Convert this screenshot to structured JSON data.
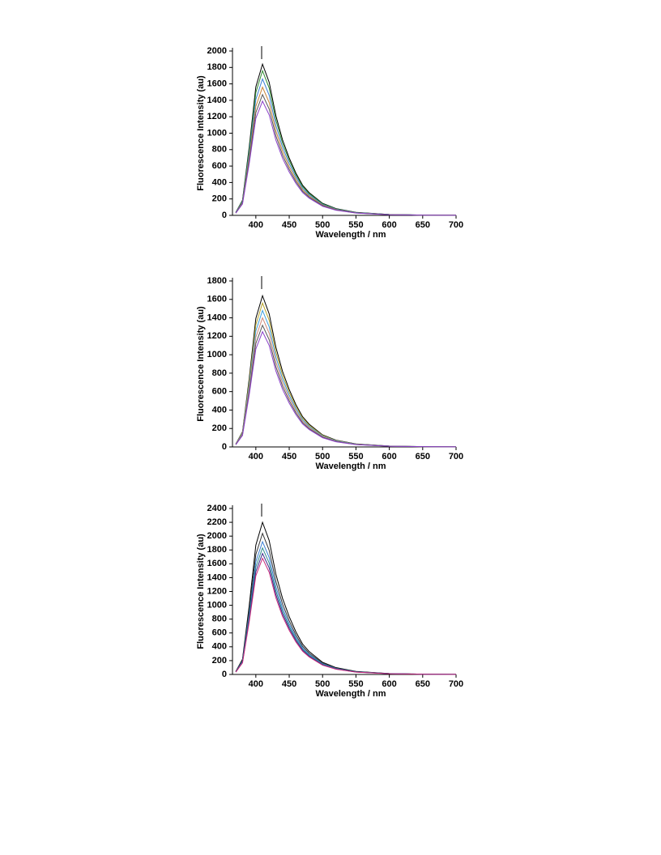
{
  "chart_data": [
    {
      "type": "line",
      "x_label": "Wavelength / nm",
      "y_label": "Fluorescence Intensity (au)",
      "x": [
        370,
        380,
        390,
        400,
        410,
        420,
        430,
        440,
        450,
        460,
        470,
        480,
        500,
        520,
        550,
        600,
        650,
        700
      ],
      "xlim": [
        365,
        700
      ],
      "xticks": [
        400,
        450,
        500,
        550,
        600,
        650,
        700
      ],
      "ylim": [
        0,
        2000
      ],
      "yticks": [
        0,
        200,
        400,
        600,
        800,
        1000,
        1200,
        1400,
        1600,
        1800,
        2000
      ],
      "series": [
        {
          "color": "#000000",
          "values": [
            37,
            184,
            828,
            1564,
            1840,
            1619,
            1214,
            920,
            699,
            515,
            368,
            276,
            147,
            83,
            37,
            11,
            4,
            2
          ]
        },
        {
          "color": "#2e8b2e",
          "values": [
            35,
            176,
            792,
            1496,
            1760,
            1549,
            1162,
            880,
            669,
            493,
            352,
            264,
            141,
            79,
            35,
            11,
            4,
            2
          ]
        },
        {
          "color": "#3a7fd5",
          "values": [
            33,
            166,
            747,
            1411,
            1660,
            1461,
            1096,
            830,
            631,
            465,
            332,
            249,
            133,
            75,
            33,
            10,
            3,
            2
          ]
        },
        {
          "color": "#c9853a",
          "values": [
            31,
            156,
            702,
            1326,
            1560,
            1373,
            1030,
            780,
            593,
            437,
            312,
            234,
            125,
            70,
            31,
            9,
            3,
            2
          ]
        },
        {
          "color": "#555555",
          "values": [
            29,
            147,
            662,
            1250,
            1470,
            1294,
            970,
            735,
            559,
            412,
            294,
            221,
            118,
            66,
            29,
            9,
            3,
            1
          ]
        },
        {
          "color": "#8a3fc8",
          "values": [
            28,
            139,
            626,
            1182,
            1390,
            1223,
            917,
            695,
            528,
            389,
            278,
            209,
            111,
            63,
            28,
            8,
            3,
            1
          ]
        }
      ]
    },
    {
      "type": "line",
      "x_label": "Wavelength / nm",
      "y_label": "Fluorescence Intensity (au)",
      "x": [
        370,
        380,
        390,
        400,
        410,
        420,
        430,
        440,
        450,
        460,
        470,
        480,
        500,
        520,
        550,
        600,
        650,
        700
      ],
      "xlim": [
        365,
        700
      ],
      "xticks": [
        400,
        450,
        500,
        550,
        600,
        650,
        700
      ],
      "ylim": [
        0,
        1800
      ],
      "yticks": [
        0,
        200,
        400,
        600,
        800,
        1000,
        1200,
        1400,
        1600,
        1800
      ],
      "series": [
        {
          "color": "#000000",
          "values": [
            33,
            164,
            738,
            1394,
            1640,
            1443,
            1082,
            820,
            623,
            459,
            328,
            246,
            131,
            74,
            33,
            10,
            3,
            2
          ]
        },
        {
          "color": "#b8a32a",
          "values": [
            31,
            156,
            702,
            1326,
            1560,
            1373,
            1030,
            780,
            593,
            437,
            312,
            234,
            125,
            70,
            31,
            9,
            3,
            2
          ]
        },
        {
          "color": "#3a9fe0",
          "values": [
            30,
            148,
            666,
            1258,
            1480,
            1302,
            977,
            740,
            562,
            414,
            296,
            222,
            118,
            67,
            30,
            9,
            3,
            1
          ]
        },
        {
          "color": "#d08a7a",
          "values": [
            28,
            140,
            630,
            1190,
            1400,
            1232,
            924,
            700,
            532,
            392,
            280,
            210,
            112,
            63,
            28,
            8,
            3,
            1
          ]
        },
        {
          "color": "#555555",
          "values": [
            26,
            132,
            594,
            1122,
            1320,
            1162,
            871,
            660,
            502,
            370,
            264,
            198,
            106,
            59,
            26,
            8,
            3,
            1
          ]
        },
        {
          "color": "#8a3fc8",
          "values": [
            25,
            125,
            563,
            1063,
            1250,
            1100,
            825,
            625,
            475,
            350,
            250,
            188,
            100,
            56,
            25,
            8,
            3,
            1
          ]
        }
      ]
    },
    {
      "type": "line",
      "x_label": "Wavelength / nm",
      "y_label": "Fluorescence Intensity (au)",
      "x": [
        370,
        380,
        390,
        400,
        410,
        420,
        430,
        440,
        450,
        460,
        470,
        480,
        500,
        520,
        550,
        600,
        650,
        700
      ],
      "xlim": [
        365,
        700
      ],
      "xticks": [
        400,
        450,
        500,
        550,
        600,
        650,
        700
      ],
      "ylim": [
        0,
        2400
      ],
      "yticks": [
        0,
        200,
        400,
        600,
        800,
        1000,
        1200,
        1400,
        1600,
        1800,
        2000,
        2200,
        2400
      ],
      "series": [
        {
          "color": "#000000",
          "values": [
            44,
            220,
            990,
            1870,
            2200,
            1936,
            1452,
            1100,
            836,
            616,
            440,
            330,
            176,
            99,
            44,
            13,
            4,
            2
          ]
        },
        {
          "color": "#333333",
          "values": [
            41,
            204,
            918,
            1734,
            2040,
            1795,
            1346,
            1020,
            775,
            571,
            408,
            306,
            163,
            92,
            41,
            12,
            4,
            2
          ]
        },
        {
          "color": "#3a7fd5",
          "values": [
            38,
            192,
            864,
            1632,
            1920,
            1690,
            1267,
            960,
            730,
            538,
            384,
            288,
            154,
            86,
            38,
            12,
            4,
            2
          ]
        },
        {
          "color": "#2e8b8b",
          "values": [
            37,
            183,
            824,
            1556,
            1830,
            1610,
            1208,
            915,
            695,
            512,
            366,
            275,
            146,
            82,
            37,
            11,
            4,
            2
          ]
        },
        {
          "color": "#3b2a8a",
          "values": [
            35,
            175,
            788,
            1488,
            1750,
            1540,
            1155,
            875,
            665,
            490,
            350,
            263,
            140,
            79,
            35,
            11,
            4,
            2
          ]
        },
        {
          "color": "#c8287a",
          "values": [
            34,
            168,
            756,
            1428,
            1680,
            1478,
            1109,
            840,
            638,
            470,
            336,
            252,
            134,
            76,
            34,
            10,
            3,
            2
          ]
        }
      ]
    }
  ]
}
